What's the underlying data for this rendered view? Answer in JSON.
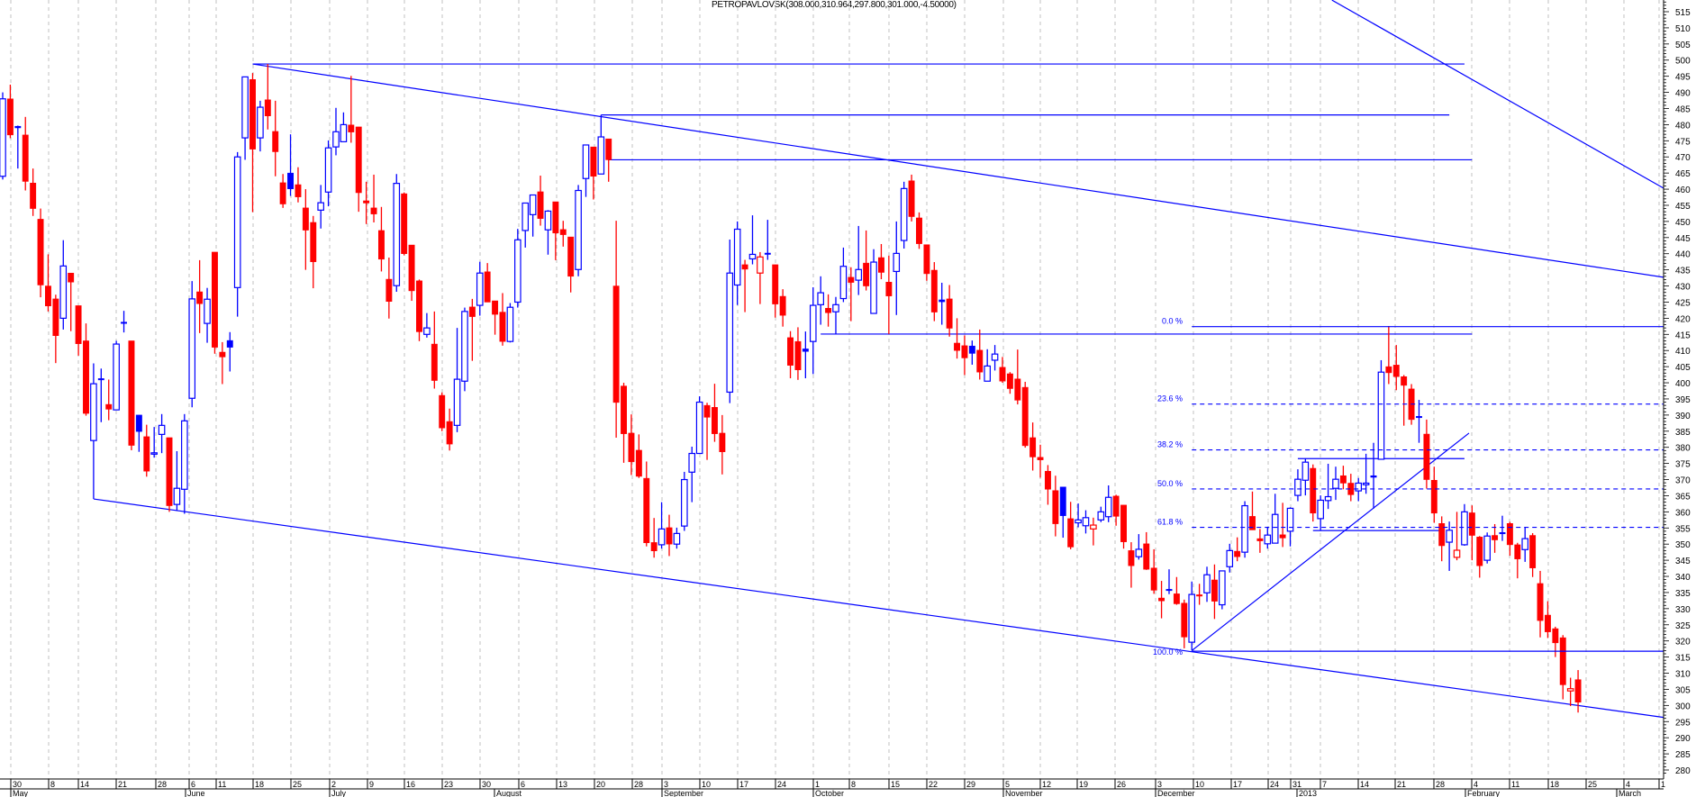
{
  "title": "PETROPAVLOVSK(308.000,310.964,297.800,301.000,-4.50000)",
  "colors": {
    "up_close": "#0000ff",
    "down_close": "#ff0000",
    "lines": "#0000ff",
    "grid": "#c0c0c0"
  },
  "chart_data": {
    "type": "candlestick",
    "title": "PETROPAVLOVSK(308.000,310.964,297.800,301.000,-4.50000)",
    "ylim": [
      280,
      515
    ],
    "y_ticks": [
      280,
      285,
      290,
      295,
      300,
      305,
      310,
      315,
      320,
      325,
      330,
      335,
      340,
      345,
      350,
      355,
      360,
      365,
      370,
      375,
      380,
      385,
      390,
      395,
      400,
      405,
      410,
      415,
      420,
      425,
      430,
      435,
      440,
      445,
      450,
      455,
      460,
      465,
      470,
      475,
      480,
      485,
      490,
      495,
      500,
      505,
      510,
      515
    ],
    "grid": "vertical dashed weekly",
    "ohlc_fields": [
      "open",
      "high",
      "low",
      "close"
    ],
    "candles": [
      [
        464,
        490,
        463,
        488
      ],
      [
        488,
        492.4,
        475.8,
        476.8
      ],
      [
        479.5,
        479.7,
        466.4,
        479
      ],
      [
        476.8,
        482.4,
        459.6,
        462.4
      ],
      [
        461.9,
        466.4,
        451.7,
        454
      ],
      [
        450.7,
        454,
        426.5,
        430.3
      ],
      [
        430,
        439.8,
        422.1,
        423.8
      ],
      [
        426,
        427.3,
        406.1,
        414.6
      ],
      [
        420,
        444.2,
        416.5,
        436.2
      ],
      [
        434,
        434,
        416,
        431.2
      ],
      [
        423.9,
        423.9,
        408.4,
        412.1
      ],
      [
        413,
        418.4,
        389.8,
        390.5
      ],
      [
        382.1,
        406,
        364,
        399.7
      ],
      [
        401.3,
        404.4,
        387.8,
        401.1
      ],
      [
        393.3,
        401,
        388.4,
        391.8
      ],
      [
        391.6,
        413,
        391.5,
        412
      ],
      [
        418.8,
        422.3,
        415.6,
        418.6
      ],
      [
        413,
        413,
        379.1,
        380.6
      ],
      [
        390,
        390,
        378.6,
        384.9
      ],
      [
        383.3,
        387,
        370.9,
        372.6
      ],
      [
        378.1,
        386.3,
        376.8,
        378.3
      ],
      [
        384,
        390.3,
        378.2,
        386.8
      ],
      [
        383,
        383,
        360,
        361.9
      ],
      [
        362.3,
        378.8,
        360.3,
        367.3
      ],
      [
        367,
        390.3,
        359.4,
        388.2
      ],
      [
        395.2,
        431.5,
        392.4,
        426
      ],
      [
        428.2,
        438,
        415.4,
        424.5
      ],
      [
        418.4,
        429.4,
        412.4,
        425.9
      ],
      [
        440.5,
        440.5,
        409,
        411
      ],
      [
        409.5,
        412.6,
        399.6,
        408
      ],
      [
        413.1,
        415.7,
        403.5,
        411
      ],
      [
        429.5,
        471.5,
        420.5,
        470
      ],
      [
        475.9,
        494.8,
        469.1,
        494.8
      ],
      [
        494,
        496,
        452.9,
        472.4
      ],
      [
        475.9,
        487.4,
        471.7,
        485.4
      ],
      [
        487.7,
        498.8,
        478.5,
        482.7
      ],
      [
        477.9,
        487.4,
        464,
        471.6
      ],
      [
        462,
        464.7,
        454.2,
        455.4
      ],
      [
        465,
        477,
        457.9,
        460.1
      ],
      [
        461.4,
        466.8,
        455.9,
        457.6
      ],
      [
        454.2,
        460,
        435,
        447.3
      ],
      [
        449.7,
        451.7,
        429.3,
        437.5
      ],
      [
        453.5,
        461.3,
        447.8,
        455.8
      ],
      [
        459.1,
        475.1,
        454.7,
        472.8
      ],
      [
        473.1,
        485.2,
        470.5,
        477.8
      ],
      [
        474.7,
        483.8,
        474.7,
        480
      ],
      [
        479.9,
        495.1,
        474.4,
        477.7
      ],
      [
        479.3,
        479.3,
        453,
        458.9
      ],
      [
        456.4,
        462.3,
        449.2,
        455.7
      ],
      [
        454.2,
        464.5,
        449.7,
        452.3
      ],
      [
        447.2,
        454.5,
        434.5,
        438.3
      ],
      [
        432.1,
        438.8,
        419.9,
        425.2
      ],
      [
        430.1,
        464.7,
        428.2,
        461.8
      ],
      [
        458.6,
        459,
        439.5,
        440
      ],
      [
        442.7,
        442.7,
        425.4,
        428.5
      ],
      [
        431.6,
        432,
        412.9,
        415.8
      ],
      [
        415,
        421.6,
        414,
        417
      ],
      [
        412,
        422.1,
        398.2,
        400.7
      ],
      [
        396.1,
        397,
        385,
        386
      ],
      [
        388,
        392,
        379,
        381
      ],
      [
        386.8,
        417,
        384.7,
        401.1
      ],
      [
        400.5,
        423.3,
        397.4,
        422.1
      ],
      [
        423.5,
        426,
        406.8,
        420.5
      ],
      [
        424,
        437.5,
        420.8,
        434
      ],
      [
        434.4,
        437.1,
        425,
        425
      ],
      [
        425.4,
        425.4,
        414.9,
        421.2
      ],
      [
        421.9,
        427.8,
        411.5,
        412.8
      ],
      [
        412.8,
        424.7,
        412.5,
        423.4
      ],
      [
        425,
        447.7,
        423.3,
        444.3
      ],
      [
        447.2,
        455.7,
        441.9,
        455.7
      ],
      [
        452.1,
        458.2,
        445.3,
        458.2
      ],
      [
        459.2,
        464.2,
        448.7,
        450.9
      ],
      [
        447.4,
        453.5,
        439.7,
        453.2
      ],
      [
        456.1,
        456.1,
        438,
        446.4
      ],
      [
        447.5,
        450.2,
        442.2,
        445.9
      ],
      [
        445.2,
        445.2,
        428,
        433
      ],
      [
        435.1,
        461.3,
        433,
        459.6
      ],
      [
        463.3,
        473.7,
        457.6,
        473.7
      ],
      [
        473.1,
        473.1,
        456.8,
        464
      ],
      [
        464.7,
        483,
        464.7,
        476.2
      ],
      [
        475.6,
        475.6,
        462.3,
        469.1
      ],
      [
        430,
        450.2,
        383,
        393.9
      ],
      [
        399,
        400,
        375.2,
        384.2
      ],
      [
        384.4,
        390.2,
        371.4,
        375.5
      ],
      [
        379.1,
        384,
        370.5,
        371
      ],
      [
        370.4,
        375.6,
        349.3,
        350.4
      ],
      [
        350.5,
        358.1,
        345.8,
        347.9
      ],
      [
        349.8,
        363,
        348.6,
        354.7
      ],
      [
        355.1,
        359.1,
        346.3,
        350
      ],
      [
        350,
        355.1,
        348.6,
        353.3
      ],
      [
        355.6,
        372.4,
        354.1,
        370
      ],
      [
        372.3,
        380.2,
        363,
        378.1
      ],
      [
        378.1,
        395.8,
        378.1,
        394
      ],
      [
        393,
        393.8,
        376.1,
        389.3
      ],
      [
        392.4,
        399.7,
        381.7,
        384.2
      ],
      [
        384.4,
        390,
        371.6,
        378.6
      ],
      [
        397.1,
        444.4,
        393.7,
        434
      ],
      [
        430.3,
        450,
        424.1,
        447.6
      ],
      [
        436.6,
        438.1,
        421.9,
        435.2
      ],
      [
        438.4,
        451.9,
        436.7,
        439.8
      ],
      [
        434,
        440.5,
        424.4,
        439
      ],
      [
        440.2,
        450.5,
        438.1,
        439.9
      ],
      [
        436.6,
        436.6,
        420.2,
        424.4
      ],
      [
        426.8,
        429,
        417.4,
        420.9
      ],
      [
        414,
        416,
        401.4,
        405.4
      ],
      [
        412.8,
        417.2,
        400.9,
        404
      ],
      [
        410.5,
        415.9,
        401.4,
        409.7
      ],
      [
        412.8,
        429.6,
        402.7,
        424
      ],
      [
        424.2,
        433,
        418,
        427.9
      ],
      [
        423.1,
        427.4,
        417.4,
        421.7
      ],
      [
        422,
        426.6,
        415.1,
        424.2
      ],
      [
        426.1,
        441.9,
        425,
        436.1
      ],
      [
        432.7,
        435.8,
        419.1,
        431.1
      ],
      [
        431.8,
        448.6,
        427.2,
        435.1
      ],
      [
        437.1,
        447.2,
        428.6,
        430
      ],
      [
        421.5,
        441.4,
        421.5,
        437.4
      ],
      [
        438.8,
        443,
        432.1,
        434.2
      ],
      [
        431.2,
        439.4,
        415.1,
        426.9
      ],
      [
        434.5,
        450,
        421,
        440.1
      ],
      [
        444.1,
        462.3,
        441.6,
        460.2
      ],
      [
        462.6,
        464.5,
        450,
        451.5
      ],
      [
        451.1,
        452.8,
        441.5,
        443.1
      ],
      [
        442.8,
        442.8,
        431.6,
        433.8
      ],
      [
        434.9,
        437.4,
        419.1,
        421.9
      ],
      [
        425.7,
        431,
        418,
        425.1
      ],
      [
        426,
        430.3,
        414.3,
        416.9
      ],
      [
        412.3,
        420,
        407.5,
        410
      ],
      [
        411.5,
        414.7,
        402.4,
        407.7
      ],
      [
        411.4,
        413.1,
        405.6,
        409.1
      ],
      [
        410.1,
        416.5,
        401,
        403.3
      ],
      [
        400.5,
        410.4,
        400.5,
        405.2
      ],
      [
        407,
        411.7,
        403.8,
        408.9
      ],
      [
        404.8,
        408,
        400,
        400.5
      ],
      [
        402.8,
        403.3,
        396.6,
        398.2
      ],
      [
        401.2,
        410.3,
        393.3,
        394.6
      ],
      [
        398.6,
        400.3,
        379.9,
        380.5
      ],
      [
        383,
        387.7,
        372.8,
        377
      ],
      [
        376.9,
        380.8,
        370.6,
        376.1
      ],
      [
        372.6,
        374.5,
        362.2,
        367
      ],
      [
        366.6,
        371.2,
        352.4,
        356.3
      ],
      [
        367.7,
        367.7,
        352,
        358.8
      ],
      [
        357.9,
        363.1,
        348.4,
        349.1
      ],
      [
        356.6,
        362.6,
        355.2,
        357.5
      ],
      [
        355.7,
        360.5,
        353.3,
        358.2
      ],
      [
        354.7,
        358.2,
        349.6,
        355.9
      ],
      [
        357.5,
        361.6,
        356.8,
        360
      ],
      [
        358.5,
        368.2,
        356.8,
        364.5
      ],
      [
        364.9,
        365.3,
        355.7,
        358.6
      ],
      [
        362.1,
        362.1,
        348.6,
        350.7
      ],
      [
        348,
        350.6,
        336.5,
        343.3
      ],
      [
        346.1,
        353.1,
        345.2,
        348.4
      ],
      [
        350.1,
        353.7,
        342,
        342.2
      ],
      [
        342.6,
        348.4,
        334.6,
        335.7
      ],
      [
        333.3,
        338.6,
        327,
        332.4
      ],
      [
        336,
        342.2,
        334.5,
        335.7
      ],
      [
        334.6,
        339.8,
        331.2,
        331.5
      ],
      [
        331.7,
        332.8,
        317.7,
        321.2
      ],
      [
        319.6,
        338.4,
        317,
        334.4
      ],
      [
        334.3,
        337.7,
        331.2,
        334
      ],
      [
        334.9,
        343,
        332.1,
        340.5
      ],
      [
        338.9,
        343.7,
        326.8,
        332.3
      ],
      [
        331.2,
        341.7,
        329.8,
        341.7
      ],
      [
        343,
        350.1,
        341.2,
        348
      ],
      [
        347.8,
        352.1,
        344.7,
        346.1
      ],
      [
        347.5,
        363.3,
        345.8,
        361.9
      ],
      [
        358.6,
        366.3,
        354.4,
        354.4
      ],
      [
        351.7,
        354.7,
        347.3,
        351
      ],
      [
        350.1,
        355.1,
        348.6,
        352.8
      ],
      [
        350.3,
        365.6,
        350.3,
        359.2
      ],
      [
        352.9,
        362.8,
        349.1,
        351.9
      ],
      [
        354,
        361.4,
        349.3,
        361.1
      ],
      [
        365.1,
        373.2,
        363.3,
        370.1
      ],
      [
        369.8,
        376.5,
        365.1,
        375.4
      ],
      [
        373.5,
        374.7,
        357,
        359.6
      ],
      [
        357.9,
        365.1,
        354.2,
        363.6
      ],
      [
        363.5,
        374.9,
        360.9,
        364.7
      ],
      [
        367.3,
        374,
        363.7,
        370.1
      ],
      [
        371.2,
        374.3,
        367,
        368.9
      ],
      [
        368.9,
        371.8,
        363.3,
        365.3
      ],
      [
        366.5,
        370.5,
        363.3,
        368.9
      ],
      [
        368.4,
        378,
        365.6,
        368.9
      ],
      [
        371.2,
        381.4,
        361,
        370.7
      ],
      [
        376.3,
        407,
        376.3,
        403.3
      ],
      [
        405,
        417.6,
        399.6,
        403.1
      ],
      [
        405.5,
        411.7,
        397.7,
        401.9
      ],
      [
        401.9,
        402.4,
        386.7,
        399.2
      ],
      [
        398.1,
        399.6,
        387,
        388.6
      ],
      [
        389.6,
        394.7,
        381.4,
        389.5
      ],
      [
        384.1,
        388.6,
        367.2,
        370
      ],
      [
        369.8,
        374,
        356.6,
        359.6
      ],
      [
        356.4,
        358.6,
        344.7,
        349.5
      ],
      [
        350.6,
        357,
        341.7,
        354.3
      ],
      [
        345.9,
        360,
        345,
        348.1
      ],
      [
        349.8,
        362.4,
        349.5,
        360
      ],
      [
        359.7,
        362,
        345,
        352.7
      ],
      [
        352.2,
        352.5,
        339.6,
        343.3
      ],
      [
        345,
        353.6,
        344,
        352.5
      ],
      [
        352.7,
        356.2,
        347.3,
        351.3
      ],
      [
        353.6,
        358.8,
        351,
        353.4
      ],
      [
        356.4,
        356.9,
        346.4,
        349.8
      ],
      [
        349.8,
        350.4,
        339.4,
        345.4
      ],
      [
        348.3,
        355.3,
        344.5,
        351.7
      ],
      [
        352.7,
        353.4,
        339.8,
        342.6
      ],
      [
        337.8,
        341.7,
        321.1,
        326.3
      ],
      [
        328,
        332.3,
        320.9,
        322.8
      ],
      [
        323.8,
        324.4,
        315,
        319.4
      ],
      [
        321,
        321.8,
        301.9,
        306.4
      ],
      [
        304.5,
        308.6,
        299.8,
        305.2
      ],
      [
        308,
        310.964,
        297.8,
        301
      ]
    ],
    "drawn_lines": [
      {
        "from": [
          34,
          498.8
        ],
        "to": [
          194,
          498.8
        ],
        "style": "solid"
      },
      {
        "from": [
          34,
          498.8
        ],
        "to": [
          220.3,
          432.7
        ],
        "style": "solid"
      },
      {
        "from": [
          80,
          483
        ],
        "to": [
          192,
          483
        ],
        "style": "solid"
      },
      {
        "from": [
          81,
          469.1
        ],
        "to": [
          195,
          469.1
        ],
        "style": "solid"
      },
      {
        "from": [
          176.5,
          518.6
        ],
        "to": [
          220.3,
          460.3
        ],
        "style": "solid"
      },
      {
        "from": [
          13,
          364
        ],
        "to": [
          220.3,
          296.3
        ],
        "style": "solid"
      },
      {
        "from": [
          109,
          415.1
        ],
        "to": [
          195,
          415.1
        ],
        "style": "solid"
      },
      {
        "from": [
          158,
          317
        ],
        "to": [
          194.6,
          384.4
        ],
        "style": "solid"
      },
      {
        "from": [
          172,
          376.5
        ],
        "to": [
          194,
          376.5
        ],
        "style": "solid"
      },
      {
        "from": [
          174,
          354.2
        ],
        "to": [
          191,
          354.2
        ],
        "style": "solid"
      }
    ],
    "fibonacci": {
      "from_candle": 158,
      "levels": [
        {
          "label": "0.0 %",
          "price": 417.4,
          "style": "solid"
        },
        {
          "label": "23.6 %",
          "price": 393.4,
          "style": "dashed"
        },
        {
          "label": "38.2 %",
          "price": 379.2,
          "style": "dashed"
        },
        {
          "label": "50.0 %",
          "price": 367.1,
          "style": "dashed"
        },
        {
          "label": "61.8 %",
          "price": 355.2,
          "style": "dashed"
        },
        {
          "label": "100.0 %",
          "price": 316.8,
          "style": "solid"
        }
      ]
    },
    "x_week_ticks": [
      "30",
      "8",
      "14",
      "21",
      "28",
      "6",
      "11",
      "18",
      "25",
      "2",
      "9",
      "16",
      "23",
      "30",
      "6",
      "13",
      "20",
      "28",
      "3",
      "10",
      "17",
      "24",
      "1",
      "8",
      "15",
      "22",
      "29",
      "5",
      "12",
      "19",
      "26",
      "3",
      "10",
      "17",
      "24",
      "31",
      "7",
      "14",
      "21",
      "28",
      "4",
      "11",
      "18",
      "25",
      "4",
      "1"
    ],
    "x_month_labels": [
      "May",
      "June",
      "July",
      "August",
      "September",
      "October",
      "November",
      "December",
      "2013",
      "February",
      "March"
    ]
  }
}
